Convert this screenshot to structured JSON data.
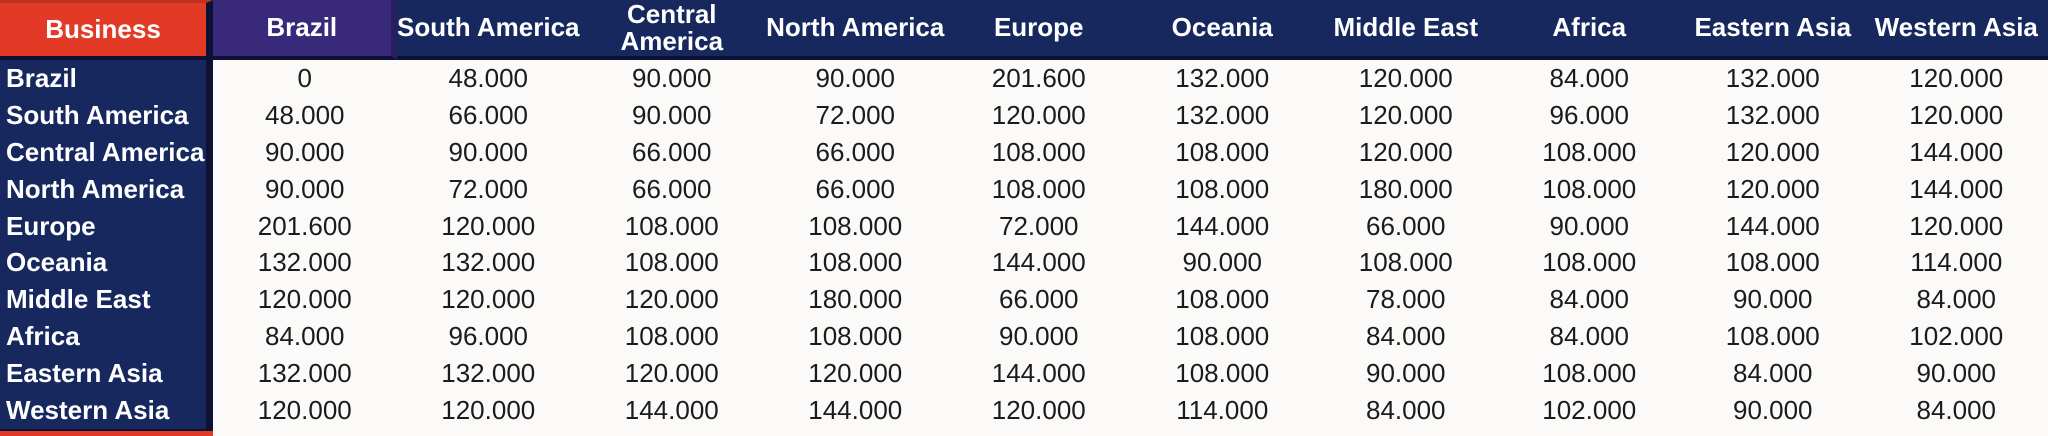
{
  "chart_data": {
    "type": "table",
    "corner_header": "Business",
    "columns": [
      "Brazil",
      "South America",
      "Central America",
      "North America",
      "Europe",
      "Oceania",
      "Middle East",
      "Africa",
      "Eastern Asia",
      "Western Asia"
    ],
    "rows": [
      "Brazil",
      "South America",
      "Central America",
      "North America",
      "Europe",
      "Oceania",
      "Middle East",
      "Africa",
      "Eastern Asia",
      "Western Asia"
    ],
    "values": [
      [
        "0",
        "48.000",
        "90.000",
        "90.000",
        "201.600",
        "132.000",
        "120.000",
        "84.000",
        "132.000",
        "120.000"
      ],
      [
        "48.000",
        "66.000",
        "90.000",
        "72.000",
        "120.000",
        "132.000",
        "120.000",
        "96.000",
        "132.000",
        "120.000"
      ],
      [
        "90.000",
        "90.000",
        "66.000",
        "66.000",
        "108.000",
        "108.000",
        "120.000",
        "108.000",
        "120.000",
        "144.000"
      ],
      [
        "90.000",
        "72.000",
        "66.000",
        "66.000",
        "108.000",
        "108.000",
        "180.000",
        "108.000",
        "120.000",
        "144.000"
      ],
      [
        "201.600",
        "120.000",
        "108.000",
        "108.000",
        "72.000",
        "144.000",
        "66.000",
        "90.000",
        "144.000",
        "120.000"
      ],
      [
        "132.000",
        "132.000",
        "108.000",
        "108.000",
        "144.000",
        "90.000",
        "108.000",
        "108.000",
        "108.000",
        "114.000"
      ],
      [
        "120.000",
        "120.000",
        "120.000",
        "180.000",
        "66.000",
        "108.000",
        "78.000",
        "84.000",
        "90.000",
        "84.000"
      ],
      [
        "84.000",
        "96.000",
        "108.000",
        "108.000",
        "90.000",
        "108.000",
        "84.000",
        "84.000",
        "108.000",
        "102.000"
      ],
      [
        "132.000",
        "132.000",
        "120.000",
        "120.000",
        "144.000",
        "108.000",
        "90.000",
        "108.000",
        "84.000",
        "90.000"
      ],
      [
        "120.000",
        "120.000",
        "144.000",
        "144.000",
        "120.000",
        "114.000",
        "84.000",
        "102.000",
        "90.000",
        "84.000"
      ]
    ]
  },
  "colors": {
    "corner_bg": "#E23A26",
    "corner_border": "#BE311F",
    "brazil_header_bg": "#39297B",
    "brazil_border": "#2A1D5E",
    "header_bg": "#16285E",
    "row_header_bg": "#16285E",
    "border_dark": "#0D1133",
    "cell_bg": "#FBFAF8",
    "header_text": "#FFFFFF",
    "cell_text": "#1B1B1B",
    "bottom_strip": "#E23A26"
  }
}
